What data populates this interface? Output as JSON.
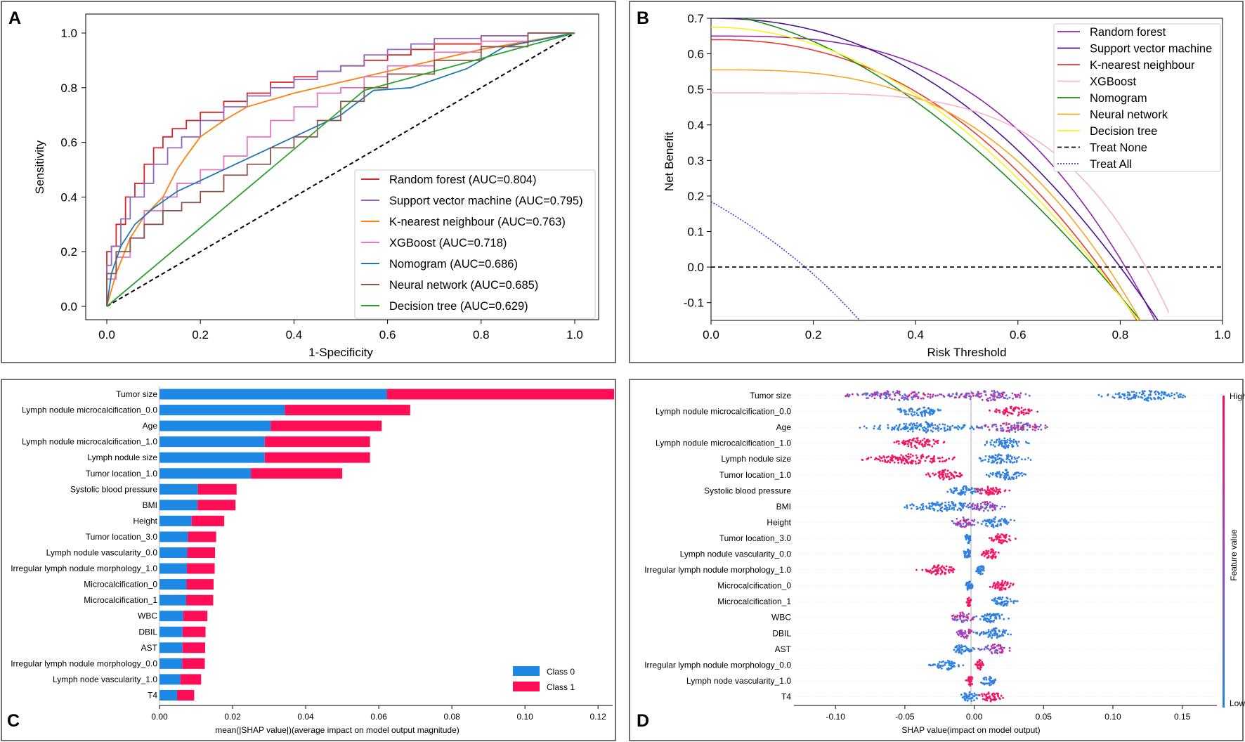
{
  "colors": {
    "rf": "#d62728",
    "svm": "#9467bd",
    "knn": "#ff7f0e",
    "xgb": "#e377c2",
    "nomo": "#1f77b4",
    "nn": "#8c564b",
    "dt": "#2ca02c",
    "dca_rf": "#8e24aa",
    "dca_svm": "#4a148c",
    "dca_knn": "#e53935",
    "dca_xgb": "#f4b6c8",
    "dca_nomo": "#1b8a1b",
    "dca_nn": "#f5a623",
    "dca_dt": "#f5f51e",
    "treat_all": "#3b3bdc",
    "class0": "#1e88e5",
    "class1": "#ff0d57"
  },
  "chart_data": [
    {
      "panel": "A",
      "type": "line",
      "xlabel": "1-Specificity",
      "ylabel": "Sensitivity",
      "xlim": [
        0,
        1
      ],
      "ylim": [
        0,
        1
      ],
      "xticks": [
        "0.0",
        "0.2",
        "0.4",
        "0.6",
        "0.8",
        "1.0"
      ],
      "yticks": [
        "0.0",
        "0.2",
        "0.4",
        "0.6",
        "0.8",
        "1.0"
      ],
      "legend_position": "bottom-right",
      "series": [
        {
          "key": "rf",
          "name": "Random forest (AUC=0.804)",
          "step": true,
          "x": [
            0,
            0.01,
            0.02,
            0.04,
            0.06,
            0.08,
            0.1,
            0.12,
            0.14,
            0.17,
            0.2,
            0.25,
            0.3,
            0.35,
            0.4,
            0.45,
            0.5,
            0.55,
            0.6,
            0.65,
            0.7,
            0.8,
            0.9,
            1.0
          ],
          "y": [
            0,
            0.2,
            0.22,
            0.3,
            0.4,
            0.45,
            0.52,
            0.58,
            0.62,
            0.65,
            0.68,
            0.71,
            0.75,
            0.78,
            0.82,
            0.84,
            0.86,
            0.88,
            0.9,
            0.92,
            0.94,
            0.96,
            0.99,
            1.0
          ]
        },
        {
          "key": "svm",
          "name": "Support vector machine (AUC=0.795)",
          "step": true,
          "x": [
            0,
            0.01,
            0.03,
            0.05,
            0.08,
            0.1,
            0.13,
            0.16,
            0.2,
            0.25,
            0.3,
            0.35,
            0.4,
            0.45,
            0.5,
            0.55,
            0.6,
            0.65,
            0.7,
            0.8,
            0.9,
            1.0
          ],
          "y": [
            0,
            0.15,
            0.22,
            0.32,
            0.4,
            0.45,
            0.52,
            0.58,
            0.62,
            0.68,
            0.73,
            0.77,
            0.8,
            0.83,
            0.86,
            0.88,
            0.92,
            0.94,
            0.96,
            0.98,
            0.99,
            1.0
          ]
        },
        {
          "key": "knn",
          "name": "K-nearest neighbour (AUC=0.763)",
          "step": false,
          "x": [
            0,
            0.02,
            0.05,
            0.08,
            0.12,
            0.15,
            0.17,
            0.2,
            0.25,
            0.3,
            0.4,
            0.5,
            0.6,
            0.7,
            0.8,
            0.9,
            1.0
          ],
          "y": [
            0,
            0.12,
            0.25,
            0.33,
            0.4,
            0.5,
            0.55,
            0.62,
            0.68,
            0.73,
            0.78,
            0.82,
            0.86,
            0.9,
            0.94,
            0.97,
            1.0
          ]
        },
        {
          "key": "xgb",
          "name": "XGBoost (AUC=0.718)",
          "step": true,
          "x": [
            0,
            0.02,
            0.05,
            0.08,
            0.12,
            0.15,
            0.2,
            0.25,
            0.3,
            0.35,
            0.4,
            0.45,
            0.5,
            0.55,
            0.6,
            0.7,
            0.8,
            0.9,
            1.0
          ],
          "y": [
            0,
            0.1,
            0.18,
            0.25,
            0.35,
            0.4,
            0.45,
            0.5,
            0.55,
            0.62,
            0.68,
            0.73,
            0.78,
            0.8,
            0.84,
            0.88,
            0.93,
            0.97,
            1.0
          ]
        },
        {
          "key": "nomo",
          "name": "Nomogram (AUC=0.686)",
          "step": false,
          "x": [
            0,
            0.01,
            0.03,
            0.06,
            0.1,
            0.15,
            0.2,
            0.3,
            0.4,
            0.5,
            0.57,
            0.65,
            0.77,
            0.85,
            1.0
          ],
          "y": [
            0,
            0.12,
            0.22,
            0.3,
            0.36,
            0.42,
            0.46,
            0.54,
            0.62,
            0.7,
            0.79,
            0.8,
            0.87,
            0.95,
            1.0
          ]
        },
        {
          "key": "nn",
          "name": "Neural network (AUC=0.685)",
          "step": true,
          "x": [
            0,
            0.02,
            0.05,
            0.08,
            0.12,
            0.16,
            0.2,
            0.25,
            0.3,
            0.35,
            0.4,
            0.45,
            0.5,
            0.55,
            0.6,
            0.7,
            0.8,
            0.9,
            1.0
          ],
          "y": [
            0,
            0.12,
            0.2,
            0.25,
            0.3,
            0.35,
            0.38,
            0.42,
            0.48,
            0.52,
            0.58,
            0.62,
            0.68,
            0.75,
            0.8,
            0.85,
            0.9,
            0.95,
            1.0
          ]
        },
        {
          "key": "dt",
          "name": "Decision tree (AUC=0.629)",
          "step": false,
          "x": [
            0,
            0.55,
            0.85,
            1.0
          ],
          "y": [
            0,
            0.79,
            0.93,
            1.0
          ]
        }
      ],
      "reference_line": {
        "x": [
          0,
          1
        ],
        "y": [
          0,
          1
        ],
        "style": "dashed"
      }
    },
    {
      "panel": "B",
      "type": "line",
      "xlabel": "Risk Threshold",
      "ylabel": "Net Benefit",
      "xlim": [
        0,
        1
      ],
      "ylim": [
        -0.15,
        0.7
      ],
      "xticks": [
        "0.0",
        "0.2",
        "0.4",
        "0.6",
        "0.8",
        "1.0"
      ],
      "yticks": [
        "-0.1",
        "0.0",
        "0.1",
        "0.2",
        "0.3",
        "0.4",
        "0.5",
        "0.6",
        "0.7"
      ],
      "legend_position": "top-right",
      "series": [
        {
          "key": "dca_rf",
          "name": "Random forest",
          "start": 0.65,
          "zero": 0.81,
          "shape": 3.0
        },
        {
          "key": "dca_svm",
          "name": "Support vector machine",
          "start": 0.7,
          "zero": 0.8,
          "shape": 2.2
        },
        {
          "key": "dca_knn",
          "name": "K-nearest neighbour",
          "start": 0.64,
          "zero": 0.76,
          "shape": 2.3
        },
        {
          "key": "dca_xgb",
          "name": "XGBoost",
          "start": 0.49,
          "zero": 0.85,
          "shape": 4.5
        },
        {
          "key": "dca_nomo",
          "name": "Nomogram",
          "start": 0.71,
          "zero": 0.75,
          "shape": 1.7
        },
        {
          "key": "dca_nn",
          "name": "Neural network",
          "start": 0.555,
          "zero": 0.775,
          "shape": 3.0
        },
        {
          "key": "dca_dt",
          "name": "Decision tree",
          "start": 0.675,
          "zero": 0.755,
          "shape": 2.0
        },
        {
          "key": "treat_none",
          "name": "Treat None",
          "style": "dashed",
          "value": 0
        },
        {
          "key": "treat_all",
          "name": "Treat All",
          "style": "dotted",
          "prevalence": 0.184
        }
      ]
    },
    {
      "panel": "C",
      "type": "bar",
      "orientation": "horizontal",
      "stacked": true,
      "xlabel": "mean(|SHAP value|)(average impact on model output magnitude)",
      "xlim": [
        0,
        0.124
      ],
      "xticks": [
        "0.00",
        "0.02",
        "0.04",
        "0.06",
        "0.08",
        "0.10",
        "0.12"
      ],
      "legend_position": "bottom-right",
      "categories": [
        "Tumor size",
        "Lymph nodule microcalcification_0.0",
        "Age",
        "Lymph nodule microcalcification_1.0",
        "Lymph nodule size",
        "Tumor location_1.0",
        "Systolic blood pressure",
        "BMI",
        "Height",
        "Tumor location_3.0",
        "Lymph nodule vascularity_0.0",
        "Irregular lymph nodule morphology_1.0",
        "Microcalcification_0",
        "Microcalcification_1",
        "WBC",
        "DBIL",
        "AST",
        "Irregular lymph nodule morphology_0.0",
        "Lymph node vascularity_1.0",
        "T4"
      ],
      "series": [
        {
          "name": "Class  0",
          "values": [
            0.0622,
            0.0343,
            0.0304,
            0.0288,
            0.0288,
            0.025,
            0.0105,
            0.0104,
            0.0088,
            0.0078,
            0.0076,
            0.0075,
            0.0074,
            0.0073,
            0.0065,
            0.0063,
            0.0063,
            0.0062,
            0.0057,
            0.0048
          ]
        },
        {
          "name": "Class  1",
          "values": [
            0.0622,
            0.0343,
            0.0304,
            0.0288,
            0.0288,
            0.025,
            0.0106,
            0.0104,
            0.0089,
            0.0077,
            0.0076,
            0.0076,
            0.0074,
            0.0074,
            0.0066,
            0.0063,
            0.0062,
            0.0062,
            0.0057,
            0.0047
          ]
        }
      ]
    },
    {
      "panel": "D",
      "type": "scatter",
      "subtype": "beeswarm",
      "xlabel": "SHAP value(impact on model output)",
      "xlim": [
        -0.13,
        0.175
      ],
      "xticks": [
        "-0.10",
        "-0.05",
        "0.00",
        "0.05",
        "0.10",
        "0.15"
      ],
      "colorbar_label": "Feature value",
      "colorbar_high": "High",
      "colorbar_low": "Low",
      "categories": [
        "Tumor size",
        "Lymph nodule microcalcification_0.0",
        "Age",
        "Lymph nodule microcalcification_1.0",
        "Lymph nodule size",
        "Tumor location_1.0",
        "Systolic blood pressure",
        "BMI",
        "Height",
        "Tumor location_3.0",
        "Lymph nodule vascularity_0.0",
        "Irregular lymph nodule morphology_1.0",
        "Microcalcification_0",
        "Microcalcification_1",
        "WBC",
        "DBIL",
        "AST",
        "Irregular lymph nodule morphology_0.0",
        "Lymph node vascularity_1.0",
        "T4"
      ],
      "clusters": [
        [
          {
            "c": -0.055,
            "w": 0.045,
            "col": "mix"
          },
          {
            "c": 0.01,
            "w": 0.04,
            "col": "mix"
          },
          {
            "c": 0.125,
            "w": 0.04,
            "col": "blue"
          }
        ],
        [
          {
            "c": -0.04,
            "w": 0.025,
            "col": "blue"
          },
          {
            "c": 0.028,
            "w": 0.02,
            "col": "red"
          }
        ],
        [
          {
            "c": -0.035,
            "w": 0.05,
            "col": "blue"
          },
          {
            "c": 0.03,
            "w": 0.035,
            "col": "mix"
          }
        ],
        [
          {
            "c": -0.04,
            "w": 0.025,
            "col": "red"
          },
          {
            "c": 0.022,
            "w": 0.02,
            "col": "blue"
          }
        ],
        [
          {
            "c": -0.045,
            "w": 0.045,
            "col": "red"
          },
          {
            "c": 0.02,
            "w": 0.025,
            "col": "blue"
          }
        ],
        [
          {
            "c": -0.02,
            "w": 0.018,
            "col": "red"
          },
          {
            "c": 0.024,
            "w": 0.02,
            "col": "blue"
          }
        ],
        [
          {
            "c": -0.008,
            "w": 0.015,
            "col": "blue"
          },
          {
            "c": 0.012,
            "w": 0.015,
            "col": "red"
          }
        ],
        [
          {
            "c": -0.02,
            "w": 0.04,
            "col": "blue"
          },
          {
            "c": 0.008,
            "w": 0.018,
            "col": "mix"
          }
        ],
        [
          {
            "c": -0.008,
            "w": 0.015,
            "col": "mix"
          },
          {
            "c": 0.015,
            "w": 0.02,
            "col": "blue"
          }
        ],
        [
          {
            "c": -0.004,
            "w": 0.004,
            "col": "blue"
          },
          {
            "c": 0.02,
            "w": 0.012,
            "col": "red"
          }
        ],
        [
          {
            "c": -0.005,
            "w": 0.005,
            "col": "blue"
          },
          {
            "c": 0.012,
            "w": 0.01,
            "col": "red"
          }
        ],
        [
          {
            "c": -0.025,
            "w": 0.017,
            "col": "red"
          },
          {
            "c": 0.005,
            "w": 0.005,
            "col": "blue"
          }
        ],
        [
          {
            "c": -0.004,
            "w": 0.004,
            "col": "blue"
          },
          {
            "c": 0.02,
            "w": 0.013,
            "col": "red"
          }
        ],
        [
          {
            "c": -0.004,
            "w": 0.003,
            "col": "red"
          },
          {
            "c": 0.02,
            "w": 0.013,
            "col": "blue"
          }
        ],
        [
          {
            "c": -0.008,
            "w": 0.012,
            "col": "mix"
          },
          {
            "c": 0.012,
            "w": 0.016,
            "col": "blue"
          }
        ],
        [
          {
            "c": -0.006,
            "w": 0.01,
            "col": "mix"
          },
          {
            "c": 0.015,
            "w": 0.018,
            "col": "blue"
          }
        ],
        [
          {
            "c": -0.008,
            "w": 0.012,
            "col": "blue"
          },
          {
            "c": 0.015,
            "w": 0.015,
            "col": "mix"
          }
        ],
        [
          {
            "c": -0.02,
            "w": 0.015,
            "col": "blue"
          },
          {
            "c": 0.004,
            "w": 0.004,
            "col": "red"
          }
        ],
        [
          {
            "c": -0.003,
            "w": 0.004,
            "col": "red"
          },
          {
            "c": 0.01,
            "w": 0.008,
            "col": "blue"
          }
        ],
        [
          {
            "c": -0.003,
            "w": 0.01,
            "col": "blue"
          },
          {
            "c": 0.012,
            "w": 0.012,
            "col": "red"
          }
        ]
      ]
    }
  ],
  "panel_labels": [
    "A",
    "B",
    "C",
    "D"
  ]
}
